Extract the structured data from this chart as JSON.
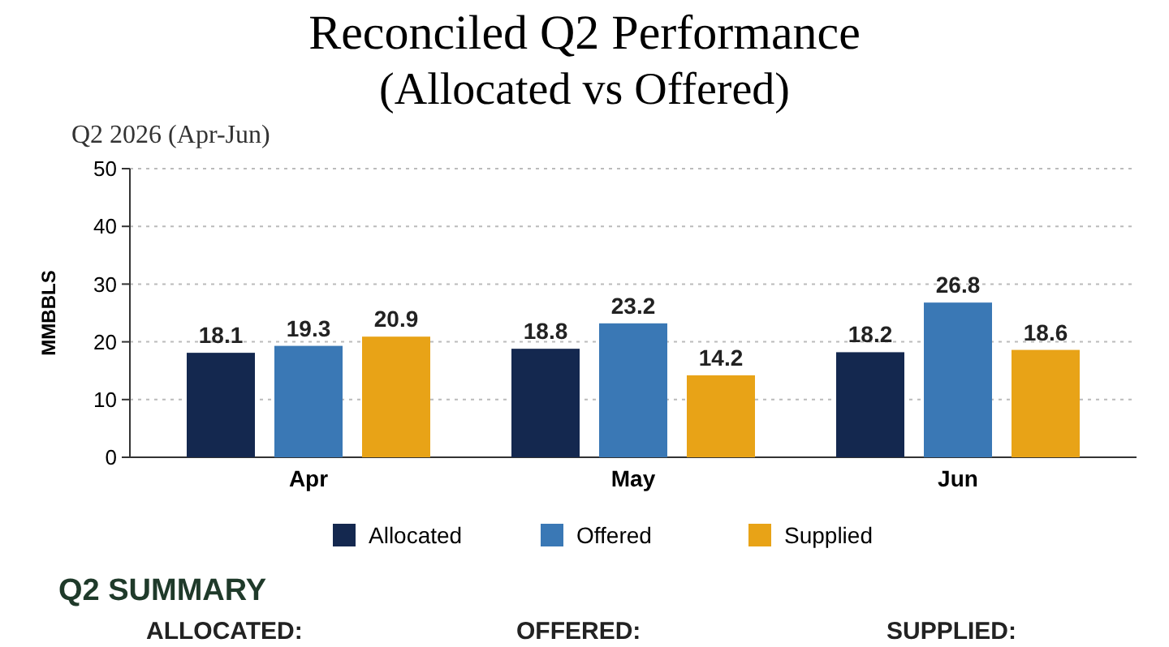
{
  "chart_data": {
    "type": "bar",
    "title": "Reconciled Q2 Performance",
    "subtitle": "(Allocated vs Offered)",
    "ylabel": "MMBBLS",
    "categories": [
      "Apr",
      "May",
      "Jun"
    ],
    "series": [
      {
        "name": "Allocated",
        "color": "#14284f",
        "values": [
          18.1,
          18.8,
          18.2
        ]
      },
      {
        "name": "Offered",
        "color": "#3a78b5",
        "values": [
          19.3,
          23.2,
          26.8
        ]
      },
      {
        "name": "Supplied",
        "color": "#e8a317",
        "values": [
          20.9,
          14.2,
          18.6
        ]
      }
    ],
    "ylim": [
      0,
      50
    ],
    "yticks": [
      0,
      10,
      20,
      30,
      40,
      50
    ],
    "grid": "y",
    "legend": "bottom",
    "data_labels": true,
    "annotations": [
      "Q2 2026 (Apr-Jun)",
      "Q2 SUMMARY",
      "ALLOCATED:",
      "OFFERED:",
      "SUPPLIED:"
    ]
  }
}
